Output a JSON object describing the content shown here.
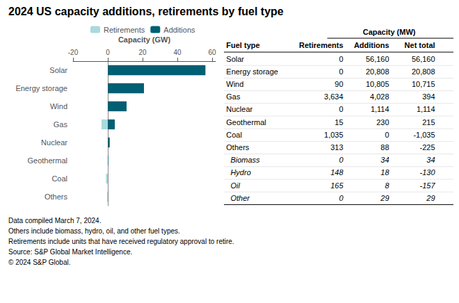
{
  "chart_data": [
    {
      "type": "bar",
      "title": "2024 US capacity additions, retirements by fuel type",
      "orientation": "horizontal",
      "categories": [
        "Solar",
        "Energy storage",
        "Wind",
        "Gas",
        "Nuclear",
        "Geothermal",
        "Coal",
        "Others"
      ],
      "series": [
        {
          "name": "Additions",
          "color": "#005f73",
          "values": [
            56.16,
            20.808,
            10.805,
            4.028,
            1.114,
            0.23,
            0,
            0.088
          ]
        },
        {
          "name": "Retirements",
          "color": "#a8dadc",
          "values": [
            0,
            0,
            -0.09,
            -3.634,
            0,
            -0.015,
            -1.035,
            -0.313
          ]
        }
      ],
      "xlabel": "Capacity (GW)",
      "xlim": [
        -20,
        62
      ],
      "xticks": [
        -20,
        0,
        20,
        40,
        60
      ],
      "grid": false,
      "legend": "top",
      "annotations": [
        "Data compiled March 7, 2024.",
        "Others include biomass, hydro, oil, and other fuel types.",
        "Retirements include units that have received regulatory approval to retire.",
        "Source: S&P Global Market Intelligence.",
        "© 2024 S&P Global."
      ]
    },
    {
      "type": "table",
      "title": "Capacity (MW)",
      "columns": [
        "Fuel type",
        "Retirements",
        "Additions",
        "Net total"
      ],
      "rows": [
        [
          "Solar",
          "0",
          "56,160",
          "56,160"
        ],
        [
          "Energy storage",
          "0",
          "20,808",
          "20,808"
        ],
        [
          "Wind",
          "90",
          "10,805",
          "10,715"
        ],
        [
          "Gas",
          "3,634",
          "4,028",
          "394"
        ],
        [
          "Nuclear",
          "0",
          "1,114",
          "1,114"
        ],
        [
          "Geothermal",
          "15",
          "230",
          "215"
        ],
        [
          "Coal",
          "1,035",
          "0",
          "-1,035"
        ],
        [
          "Others",
          "313",
          "88",
          "-225"
        ],
        [
          "  Biomass",
          "0",
          "34",
          "34"
        ],
        [
          "  Hydro",
          "148",
          "18",
          "-130"
        ],
        [
          "  Oil",
          "165",
          "8",
          "-157"
        ],
        [
          "  Other",
          "0",
          "29",
          "29"
        ]
      ]
    }
  ]
}
